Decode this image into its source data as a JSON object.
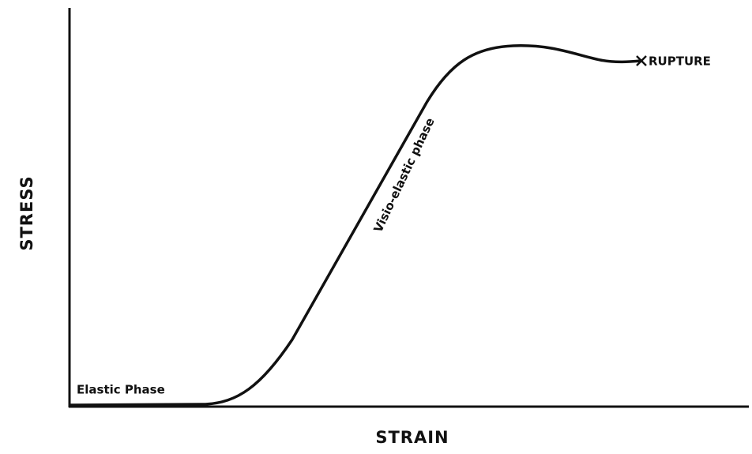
{
  "axes": {
    "y_label": "STRESS",
    "x_label": "STRAIN"
  },
  "annotations": {
    "elastic": "Elastic Phase",
    "visco": "Visio-elastic phase",
    "rupture": "RUPTURE"
  }
}
